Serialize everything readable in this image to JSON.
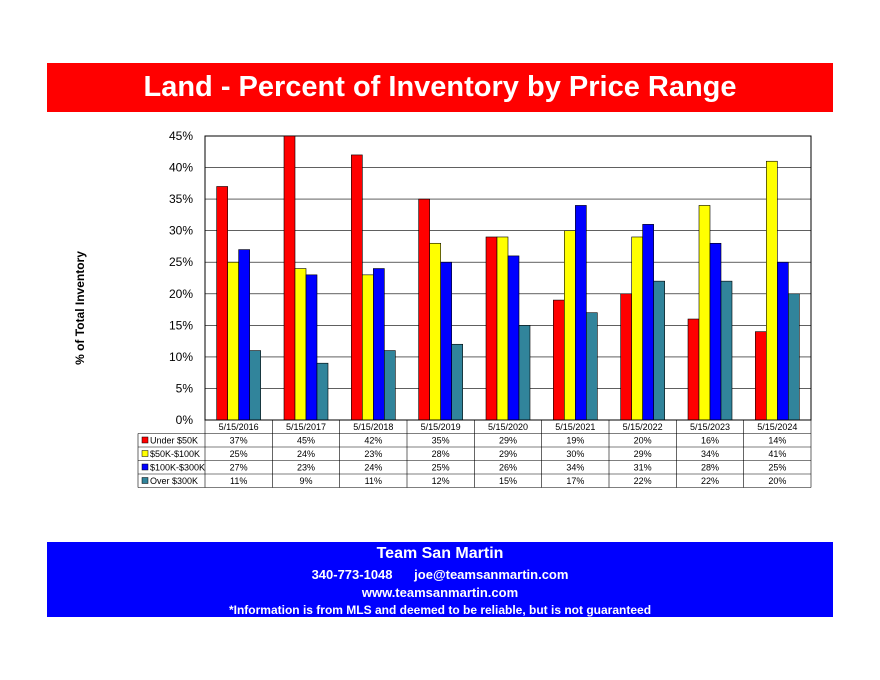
{
  "header": {
    "title": "Land - Percent of Inventory by Price Range"
  },
  "chart_data": {
    "type": "bar",
    "ylabel": "% of Total Inventory",
    "ylim": [
      0,
      45
    ],
    "yticks": [
      "0%",
      "5%",
      "10%",
      "15%",
      "20%",
      "25%",
      "30%",
      "35%",
      "40%",
      "45%"
    ],
    "grid": true,
    "legend": "data-table-below",
    "categories": [
      "5/15/2016",
      "5/15/2017",
      "5/15/2018",
      "5/15/2019",
      "5/15/2020",
      "5/15/2021",
      "5/15/2022",
      "5/15/2023",
      "5/15/2024"
    ],
    "series": [
      {
        "name": "Under $50K",
        "color": "#ff0000",
        "values": [
          37,
          45,
          42,
          35,
          29,
          19,
          20,
          16,
          14
        ]
      },
      {
        "name": "$50K-$100K",
        "color": "#ffff00",
        "values": [
          25,
          24,
          23,
          28,
          29,
          30,
          29,
          34,
          41
        ]
      },
      {
        "name": "$100K-$300K",
        "color": "#0000ff",
        "values": [
          27,
          23,
          24,
          25,
          26,
          34,
          31,
          28,
          25
        ]
      },
      {
        "name": "Over $300K",
        "color": "#31849b",
        "values": [
          11,
          9,
          11,
          12,
          15,
          17,
          22,
          22,
          20
        ]
      }
    ]
  },
  "footer": {
    "name": "Team San Martin",
    "phone": "340-773-1048",
    "email": "joe@teamsanmartin.com",
    "website": "www.teamsanmartin.com",
    "disclaimer": "*Information is from MLS and deemed to be reliable, but is not guaranteed"
  }
}
